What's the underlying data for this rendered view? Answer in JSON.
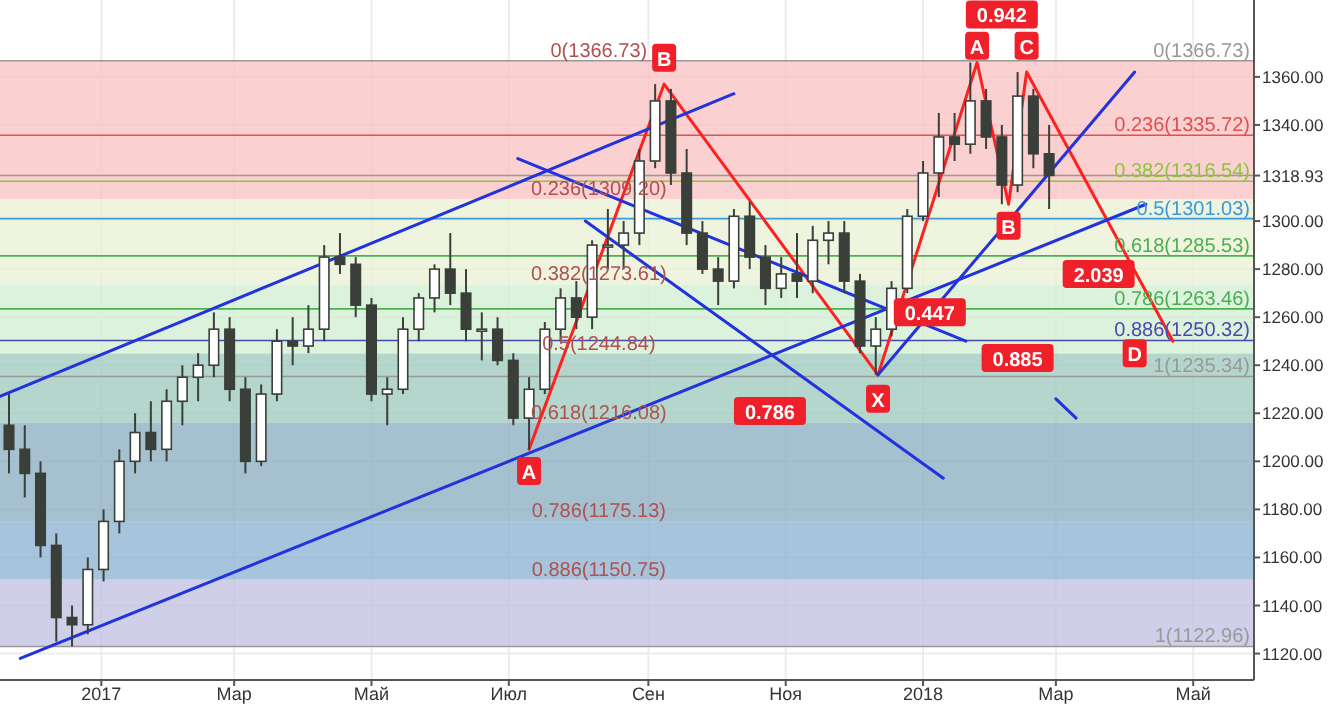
{
  "chart_data": {
    "type": "candlestick",
    "x": [
      "2016-11-21",
      "2016-11-28",
      "2016-12-05",
      "2016-12-12",
      "2016-12-19",
      "2016-12-26",
      "2017-01-02",
      "2017-01-09",
      "2017-01-16",
      "2017-01-23",
      "2017-01-30",
      "2017-02-06",
      "2017-02-13",
      "2017-02-20",
      "2017-02-27",
      "2017-03-06",
      "2017-03-13",
      "2017-03-20",
      "2017-03-27",
      "2017-04-03",
      "2017-04-10",
      "2017-04-17",
      "2017-04-24",
      "2017-05-01",
      "2017-05-08",
      "2017-05-15",
      "2017-05-22",
      "2017-05-29",
      "2017-06-05",
      "2017-06-12",
      "2017-06-19",
      "2017-06-26",
      "2017-07-03",
      "2017-07-10",
      "2017-07-17",
      "2017-07-24",
      "2017-07-31",
      "2017-08-07",
      "2017-08-14",
      "2017-08-21",
      "2017-08-28",
      "2017-09-04",
      "2017-09-11",
      "2017-09-18",
      "2017-09-25",
      "2017-10-02",
      "2017-10-09",
      "2017-10-16",
      "2017-10-23",
      "2017-10-30",
      "2017-11-06",
      "2017-11-13",
      "2017-11-20",
      "2017-11-27",
      "2017-12-04",
      "2017-12-11",
      "2017-12-18",
      "2017-12-25",
      "2018-01-01",
      "2018-01-08",
      "2018-01-15",
      "2018-01-22",
      "2018-01-29",
      "2018-02-05",
      "2018-02-12",
      "2018-02-19",
      "2018-02-26"
    ],
    "ohlc": [
      [
        1215,
        1228,
        1195,
        1205
      ],
      [
        1205,
        1215,
        1185,
        1195
      ],
      [
        1195,
        1200,
        1160,
        1165
      ],
      [
        1165,
        1170,
        1125,
        1135
      ],
      [
        1135,
        1140,
        1123,
        1132
      ],
      [
        1132,
        1160,
        1128,
        1155
      ],
      [
        1155,
        1180,
        1150,
        1175
      ],
      [
        1175,
        1205,
        1170,
        1200
      ],
      [
        1200,
        1220,
        1195,
        1212
      ],
      [
        1212,
        1225,
        1200,
        1205
      ],
      [
        1205,
        1230,
        1200,
        1225
      ],
      [
        1225,
        1240,
        1215,
        1235
      ],
      [
        1235,
        1245,
        1225,
        1240
      ],
      [
        1240,
        1262,
        1235,
        1255
      ],
      [
        1255,
        1260,
        1225,
        1230
      ],
      [
        1230,
        1235,
        1195,
        1200
      ],
      [
        1200,
        1232,
        1198,
        1228
      ],
      [
        1228,
        1255,
        1225,
        1250
      ],
      [
        1250,
        1260,
        1240,
        1248
      ],
      [
        1248,
        1265,
        1245,
        1255
      ],
      [
        1255,
        1290,
        1250,
        1285
      ],
      [
        1285,
        1295,
        1278,
        1282
      ],
      [
        1282,
        1285,
        1260,
        1265
      ],
      [
        1265,
        1268,
        1225,
        1228
      ],
      [
        1228,
        1235,
        1215,
        1230
      ],
      [
        1230,
        1260,
        1228,
        1255
      ],
      [
        1255,
        1270,
        1250,
        1268
      ],
      [
        1268,
        1282,
        1262,
        1280
      ],
      [
        1280,
        1295,
        1265,
        1270
      ],
      [
        1270,
        1280,
        1250,
        1255
      ],
      [
        1255,
        1262,
        1242,
        1255
      ],
      [
        1255,
        1260,
        1240,
        1242
      ],
      [
        1242,
        1245,
        1215,
        1218
      ],
      [
        1218,
        1235,
        1205,
        1230
      ],
      [
        1230,
        1258,
        1228,
        1255
      ],
      [
        1255,
        1272,
        1250,
        1268
      ],
      [
        1268,
        1275,
        1255,
        1260
      ],
      [
        1260,
        1292,
        1255,
        1290
      ],
      [
        1290,
        1305,
        1280,
        1290
      ],
      [
        1290,
        1300,
        1280,
        1295
      ],
      [
        1295,
        1330,
        1290,
        1325
      ],
      [
        1325,
        1357,
        1322,
        1350
      ],
      [
        1350,
        1355,
        1315,
        1320
      ],
      [
        1320,
        1330,
        1290,
        1295
      ],
      [
        1295,
        1300,
        1278,
        1280
      ],
      [
        1280,
        1285,
        1265,
        1275
      ],
      [
        1275,
        1305,
        1272,
        1302
      ],
      [
        1302,
        1308,
        1280,
        1285
      ],
      [
        1285,
        1290,
        1265,
        1272
      ],
      [
        1272,
        1285,
        1268,
        1278
      ],
      [
        1278,
        1295,
        1268,
        1275
      ],
      [
        1275,
        1298,
        1270,
        1292
      ],
      [
        1292,
        1300,
        1282,
        1295
      ],
      [
        1295,
        1300,
        1270,
        1275
      ],
      [
        1275,
        1278,
        1245,
        1248
      ],
      [
        1248,
        1260,
        1236,
        1255
      ],
      [
        1255,
        1275,
        1252,
        1272
      ],
      [
        1272,
        1305,
        1270,
        1302
      ],
      [
        1302,
        1325,
        1300,
        1320
      ],
      [
        1320,
        1345,
        1310,
        1335
      ],
      [
        1335,
        1345,
        1325,
        1332
      ],
      [
        1332,
        1366,
        1328,
        1350
      ],
      [
        1350,
        1355,
        1330,
        1335
      ],
      [
        1335,
        1340,
        1307,
        1315
      ],
      [
        1315,
        1362,
        1312,
        1352
      ],
      [
        1352,
        1355,
        1322,
        1328
      ],
      [
        1328,
        1340,
        1305,
        1319
      ]
    ],
    "color": "#3a3f3a",
    "series": [
      {
        "type": "line",
        "color": "#ff2020",
        "x": [
          "2017-12-12",
          "2018-01-25",
          "2018-02-08",
          "2018-02-16",
          "2018-04-22"
        ],
        "values": [
          1236,
          1366,
          1307,
          1362,
          1250
        ]
      },
      {
        "type": "line",
        "color": "#ff2020",
        "x": [
          "2017-07-10",
          "2017-09-08",
          "2017-12-12"
        ],
        "values": [
          1205,
          1357,
          1236
        ]
      },
      {
        "type": "line",
        "color": "#2233dd",
        "x": [
          "2016-11-26",
          "2018-04-10"
        ],
        "values": [
          1118,
          1307
        ]
      },
      {
        "type": "line",
        "color": "#2233dd",
        "x": [
          "2016-11-17",
          "2017-10-09"
        ],
        "values": [
          1227,
          1353
        ]
      },
      {
        "type": "line",
        "color": "#2233dd",
        "x": [
          "2017-07-05",
          "2018-01-20"
        ],
        "values": [
          1326,
          1250
        ]
      },
      {
        "type": "line",
        "color": "#2233dd",
        "x": [
          "2017-08-04",
          "2018-01-10"
        ],
        "values": [
          1300,
          1193
        ]
      },
      {
        "type": "line",
        "color": "#2233dd",
        "x": [
          "2017-12-12",
          "2018-04-05"
        ],
        "values": [
          1236,
          1362
        ]
      },
      {
        "type": "line",
        "color": "#2233dd",
        "x": [
          "2018-03-01",
          "2018-03-10"
        ],
        "values": [
          1226,
          1218
        ]
      }
    ],
    "xlim": [
      "2016-11-17",
      "2018-05-28"
    ],
    "xticks": [
      {
        "value": "2017-01-01",
        "label": "2017"
      },
      {
        "value": "2017-03-01",
        "label": "Мар"
      },
      {
        "value": "2017-05-01",
        "label": "Май"
      },
      {
        "value": "2017-07-01",
        "label": "Июл"
      },
      {
        "value": "2017-09-01",
        "label": "Сен"
      },
      {
        "value": "2017-11-01",
        "label": "Ноя"
      },
      {
        "value": "2018-01-01",
        "label": "2018"
      },
      {
        "value": "2018-03-01",
        "label": "Мар"
      },
      {
        "value": "2018-05-01",
        "label": "Май"
      }
    ],
    "ylim": [
      1109,
      1392
    ],
    "yticks": [
      {
        "value": 1120,
        "label": "1120.00"
      },
      {
        "value": 1140,
        "label": "1140.00"
      },
      {
        "value": 1160,
        "label": "1160.00"
      },
      {
        "value": 1180,
        "label": "1180.00"
      },
      {
        "value": 1200,
        "label": "1200.00"
      },
      {
        "value": 1220,
        "label": "1220.00"
      },
      {
        "value": 1240,
        "label": "1240.00"
      },
      {
        "value": 1260,
        "label": "1260.00"
      },
      {
        "value": 1280,
        "label": "1280.00"
      },
      {
        "value": 1300,
        "label": "1300.00"
      },
      {
        "value": 1318.93,
        "label": "1318.93"
      },
      {
        "value": 1340,
        "label": "1340.00"
      },
      {
        "value": 1360,
        "label": "1360.00"
      }
    ],
    "grid": true,
    "bands": [
      {
        "axis": "y",
        "from": 1309.2,
        "to": 1366.73,
        "label": "0(1366.73)",
        "color": "#f9c4c4"
      },
      {
        "axis": "y",
        "from": 1273.61,
        "to": 1309.2,
        "label": "0.236(1309.20)",
        "color": "#ebf1d6"
      },
      {
        "axis": "y",
        "from": 1244.84,
        "to": 1273.61,
        "label": "0.382(1273.61)",
        "color": "#d4efd4"
      },
      {
        "axis": "y",
        "from": 1216.08,
        "to": 1244.84,
        "label": "0.5(1244.84)",
        "color": "#a3ccbf"
      },
      {
        "axis": "y",
        "from": 1175.13,
        "to": 1216.08,
        "label": "0.618(1216.08)",
        "color": "#8eb2c4"
      },
      {
        "axis": "y",
        "from": 1150.75,
        "to": 1175.13,
        "label": "0.786(1175.13)",
        "color": "#90b5d3"
      },
      {
        "axis": "y",
        "from": 1122.96,
        "to": 1150.75,
        "label": "0.886(1150.75)",
        "color": "#c3c3e3"
      }
    ],
    "ref_lines": [
      {
        "axis": "y",
        "value": 1318.93,
        "color": "#999999"
      },
      {
        "axis": "y",
        "value": 1122.96,
        "label": "1(1122.96)",
        "color": "#999999"
      },
      {
        "axis": "y",
        "value": 1366.73,
        "label": "0(1366.73)",
        "color": "#999999"
      },
      {
        "axis": "y",
        "value": 1335.72,
        "label": "0.236(1335.72)",
        "color": "#e05050"
      },
      {
        "axis": "y",
        "value": 1316.54,
        "label": "0.382(1316.54)",
        "color": "#8cc63f"
      },
      {
        "axis": "y",
        "value": 1301.03,
        "label": "0.5(1301.03)",
        "color": "#3a9ad9"
      },
      {
        "axis": "y",
        "value": 1285.53,
        "label": "0.618(1285.53)",
        "color": "#4caf50"
      },
      {
        "axis": "y",
        "value": 1263.46,
        "label": "0.786(1263.46)",
        "color": "#4caf50"
      },
      {
        "axis": "y",
        "value": 1250.32,
        "label": "0.886(1250.32)",
        "color": "#4a4aaa"
      },
      {
        "axis": "y",
        "value": 1235.34,
        "label": "1(1235.34)",
        "color": "#999999"
      }
    ],
    "annotations": [
      {
        "text": "A",
        "x": "2017-07-10",
        "y": 1196
      },
      {
        "text": "B",
        "x": "2017-09-08",
        "y": 1368
      },
      {
        "text": "0.786",
        "x": "2017-10-25",
        "y": 1221
      },
      {
        "text": "X",
        "x": "2017-12-12",
        "y": 1226
      },
      {
        "text": "0.447",
        "x": "2018-01-04",
        "y": 1262
      },
      {
        "text": "A",
        "x": "2018-01-25",
        "y": 1373
      },
      {
        "text": "0.942",
        "x": "2018-02-05",
        "y": 1386
      },
      {
        "text": "B",
        "x": "2018-02-08",
        "y": 1298
      },
      {
        "text": "C",
        "x": "2018-02-16",
        "y": 1373
      },
      {
        "text": "0.885",
        "x": "2018-02-12",
        "y": 1243
      },
      {
        "text": "2.039",
        "x": "2018-03-20",
        "y": 1278
      },
      {
        "text": "D",
        "x": "2018-04-05",
        "y": 1245
      }
    ]
  }
}
